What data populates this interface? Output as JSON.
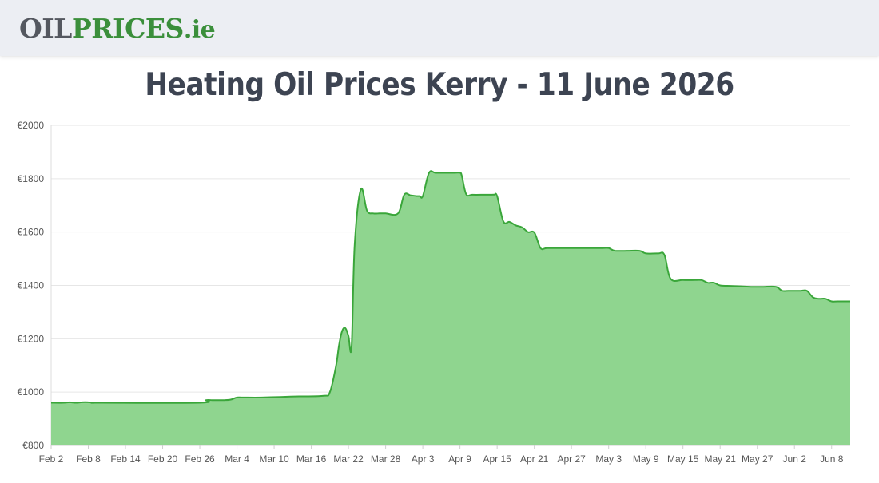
{
  "header": {
    "logo_part1": "OIL",
    "logo_part2": "PRICES",
    "logo_part3": ".ie"
  },
  "page_title": "Heating Oil Prices Kerry - 11 June 2026",
  "colors": {
    "line": "#3aa63a",
    "fill": "#8fd58f",
    "grid": "#e6e6e6"
  },
  "chart_data": {
    "type": "area",
    "ylim": [
      800,
      2000
    ],
    "y_ticks": [
      800,
      1000,
      1200,
      1400,
      1600,
      1800,
      2000
    ],
    "y_tick_prefix": "€",
    "x_ticks": [
      "Feb 2",
      "Feb 8",
      "Feb 14",
      "Feb 20",
      "Feb 26",
      "Mar 4",
      "Mar 10",
      "Mar 16",
      "Mar 22",
      "Mar 28",
      "Apr 3",
      "Apr 9",
      "Apr 15",
      "Apr 21",
      "Apr 27",
      "May 3",
      "May 9",
      "May 15",
      "May 21",
      "May 27",
      "Jun 2",
      "Jun 8"
    ],
    "x_tick_day_offsets": [
      0,
      6,
      12,
      18,
      24,
      30,
      36,
      42,
      48,
      54,
      60,
      66,
      72,
      78,
      84,
      90,
      96,
      102,
      108,
      114,
      120,
      126
    ],
    "x_range_days": [
      0,
      129
    ],
    "series": [
      {
        "x_days": [
          0,
          2,
          3,
          4,
          5,
          6,
          7,
          8,
          24,
          25,
          26,
          27,
          28,
          29,
          30,
          31,
          34,
          37,
          40,
          44,
          45,
          46,
          46.5,
          47,
          47.5,
          48,
          48.5,
          49,
          50,
          51,
          52,
          53,
          54,
          56,
          57,
          58,
          59,
          59.5,
          60,
          61,
          62,
          63,
          64,
          65,
          66,
          66.3,
          67,
          68,
          70,
          71,
          71.5,
          72,
          73,
          74,
          75,
          76,
          77,
          78,
          79,
          80,
          82,
          86,
          89,
          90,
          91,
          93,
          95,
          96,
          98,
          99,
          100,
          102,
          104,
          105,
          106,
          107,
          108,
          110,
          113,
          114,
          115,
          117,
          118,
          119,
          120,
          121,
          122,
          123,
          124,
          125,
          126,
          127,
          129
        ],
        "y": [
          960,
          960,
          962,
          960,
          962,
          962,
          960,
          960,
          960,
          970,
          970,
          970,
          970,
          972,
          980,
          980,
          980,
          982,
          984,
          986,
          1000,
          1100,
          1180,
          1230,
          1240,
          1210,
          1170,
          1550,
          1760,
          1680,
          1670,
          1670,
          1670,
          1670,
          1740,
          1738,
          1735,
          1735,
          1735,
          1822,
          1822,
          1822,
          1822,
          1822,
          1822,
          1810,
          1742,
          1740,
          1740,
          1740,
          1740,
          1735,
          1640,
          1638,
          1625,
          1618,
          1600,
          1598,
          1540,
          1540,
          1540,
          1540,
          1540,
          1540,
          1530,
          1530,
          1530,
          1520,
          1520,
          1515,
          1425,
          1420,
          1420,
          1420,
          1410,
          1410,
          1400,
          1398,
          1395,
          1395,
          1395,
          1395,
          1380,
          1380,
          1380,
          1380,
          1380,
          1355,
          1350,
          1350,
          1340,
          1340,
          1340
        ]
      }
    ],
    "grid": true
  }
}
